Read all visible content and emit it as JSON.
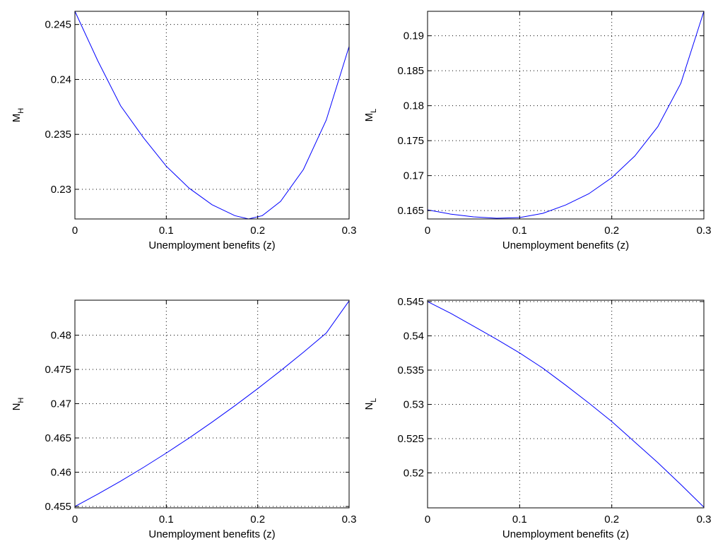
{
  "chart_data": [
    {
      "type": "line",
      "xlabel": "Unemployment benefits (z)",
      "ylabel": "M",
      "ylabel_sub": "H",
      "xlim": [
        0,
        0.3
      ],
      "ylim": [
        0.2273,
        0.2462
      ],
      "xticks": [
        0,
        0.1,
        0.2,
        0.3
      ],
      "xtick_labels": [
        "0",
        "0.1",
        "0.2",
        "0.3"
      ],
      "yticks": [
        0.23,
        0.235,
        0.24,
        0.245
      ],
      "ytick_labels": [
        "0.23",
        "0.235",
        "0.24",
        "0.245"
      ],
      "grid": true,
      "color": "#0000ff",
      "series": [
        {
          "x": [
            0,
            0.025,
            0.05,
            0.075,
            0.1,
            0.125,
            0.15,
            0.175,
            0.19,
            0.205,
            0.225,
            0.25,
            0.275,
            0.3
          ],
          "y": [
            0.2462,
            0.2417,
            0.2376,
            0.2347,
            0.2321,
            0.2301,
            0.2286,
            0.2276,
            0.2273,
            0.2276,
            0.2289,
            0.2318,
            0.2363,
            0.243
          ]
        }
      ]
    },
    {
      "type": "line",
      "xlabel": "Unemployment benefits (z)",
      "ylabel": "M",
      "ylabel_sub": "L",
      "xlim": [
        0,
        0.3
      ],
      "ylim": [
        0.1638,
        0.1935
      ],
      "xticks": [
        0,
        0.1,
        0.2,
        0.3
      ],
      "xtick_labels": [
        "0",
        "0.1",
        "0.2",
        "0.3"
      ],
      "yticks": [
        0.165,
        0.17,
        0.175,
        0.18,
        0.185,
        0.19
      ],
      "ytick_labels": [
        "0.165",
        "0.17",
        "0.175",
        "0.18",
        "0.185",
        "0.19"
      ],
      "grid": true,
      "color": "#0000ff",
      "series": [
        {
          "x": [
            0,
            0.025,
            0.05,
            0.075,
            0.1,
            0.125,
            0.15,
            0.175,
            0.2,
            0.225,
            0.25,
            0.275,
            0.3
          ],
          "y": [
            0.1651,
            0.1645,
            0.1641,
            0.1639,
            0.164,
            0.1646,
            0.1658,
            0.1674,
            0.1697,
            0.1728,
            0.177,
            0.1832,
            0.1935
          ]
        }
      ]
    },
    {
      "type": "line",
      "xlabel": "Unemployment benefits (z)",
      "ylabel": "N",
      "ylabel_sub": "H",
      "xlim": [
        0,
        0.3
      ],
      "ylim": [
        0.4548,
        0.4851
      ],
      "xticks": [
        0,
        0.1,
        0.2,
        0.3
      ],
      "xtick_labels": [
        "0",
        "0.1",
        "0.2",
        "0.3"
      ],
      "yticks": [
        0.455,
        0.46,
        0.465,
        0.47,
        0.475,
        0.48
      ],
      "ytick_labels": [
        "0.455",
        "0.46",
        "0.465",
        "0.47",
        "0.475",
        "0.48"
      ],
      "grid": true,
      "color": "#0000ff",
      "series": [
        {
          "x": [
            0,
            0.025,
            0.05,
            0.075,
            0.1,
            0.125,
            0.15,
            0.175,
            0.2,
            0.225,
            0.25,
            0.275,
            0.3
          ],
          "y": [
            0.455,
            0.4568,
            0.4587,
            0.4607,
            0.4628,
            0.465,
            0.4673,
            0.4697,
            0.4722,
            0.4748,
            0.4775,
            0.4803,
            0.485
          ]
        }
      ]
    },
    {
      "type": "line",
      "xlabel": "Unemployment benefits (z)",
      "ylabel": "N",
      "ylabel_sub": "L",
      "xlim": [
        0,
        0.3
      ],
      "ylim": [
        0.5149,
        0.5452
      ],
      "xticks": [
        0,
        0.1,
        0.2,
        0.3
      ],
      "xtick_labels": [
        "0",
        "0.1",
        "0.2",
        "0.3"
      ],
      "yticks": [
        0.52,
        0.525,
        0.53,
        0.535,
        0.54,
        0.545
      ],
      "ytick_labels": [
        "0.52",
        "0.525",
        "0.53",
        "0.535",
        "0.54",
        "0.545"
      ],
      "grid": true,
      "color": "#0000ff",
      "series": [
        {
          "x": [
            0,
            0.025,
            0.05,
            0.075,
            0.1,
            0.125,
            0.15,
            0.175,
            0.2,
            0.225,
            0.25,
            0.275,
            0.3
          ],
          "y": [
            0.545,
            0.5433,
            0.5414,
            0.5395,
            0.5375,
            0.5353,
            0.5328,
            0.5302,
            0.5275,
            0.5245,
            0.5215,
            0.5183,
            0.515
          ]
        }
      ]
    }
  ]
}
